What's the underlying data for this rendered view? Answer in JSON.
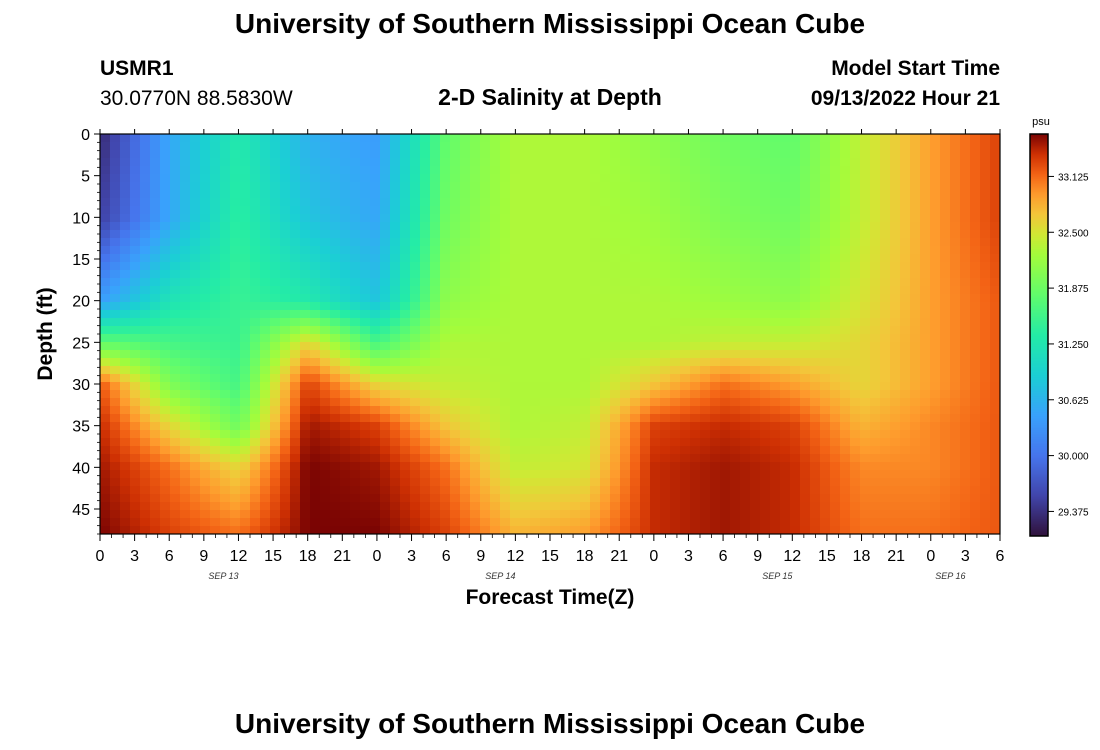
{
  "page": {
    "title": "University of Southern Mississippi Ocean Cube",
    "footer_title": "University of Southern Mississippi Ocean Cube"
  },
  "station": {
    "id": "USMR1",
    "coords": "30.0770N  88.5830W"
  },
  "model": {
    "start_label": "Model Start Time",
    "start_value": "09/13/2022 Hour 21"
  },
  "chart_data": {
    "type": "heatmap",
    "title": "2-D Salinity at Depth",
    "xlabel": "Forecast Time(Z)",
    "ylabel": "Depth (ft)",
    "x_ticks": [
      "0",
      "3",
      "6",
      "9",
      "12",
      "15",
      "18",
      "21",
      "0",
      "3",
      "6",
      "9",
      "12",
      "15",
      "18",
      "21",
      "0",
      "3",
      "6",
      "9",
      "12",
      "15",
      "18",
      "21",
      "0",
      "3",
      "6"
    ],
    "day_labels": [
      {
        "text": "SEP 13",
        "tick_index": 4
      },
      {
        "text": "SEP 14",
        "tick_index": 12
      },
      {
        "text": "SEP 15",
        "tick_index": 20
      },
      {
        "text": "SEP 16",
        "tick_index": 25
      }
    ],
    "y_ticks": [
      0,
      5,
      10,
      15,
      20,
      25,
      30,
      35,
      40,
      45
    ],
    "ylim": [
      0,
      48
    ],
    "xlim_hours": [
      0,
      78
    ],
    "colorbar": {
      "unit": "psu",
      "ticks": [
        "33.125",
        "32.500",
        "31.875",
        "31.250",
        "30.625",
        "30.000",
        "29.375"
      ],
      "range": [
        29.1,
        33.6
      ],
      "colormap": "turbo"
    },
    "salinity_grid": {
      "hours": [
        0,
        6,
        12,
        18,
        24,
        30,
        36,
        42,
        48,
        54,
        60,
        66,
        72,
        78
      ],
      "depths": [
        0,
        10,
        20,
        25,
        30,
        35,
        40,
        48
      ],
      "values": [
        [
          29.3,
          30.5,
          31.3,
          30.6,
          30.4,
          31.8,
          32.3,
          32.3,
          32.1,
          31.9,
          31.8,
          32.4,
          32.9,
          33.3
        ],
        [
          29.5,
          30.5,
          31.4,
          30.8,
          30.5,
          31.9,
          32.3,
          32.3,
          32.2,
          32.0,
          31.9,
          32.4,
          32.9,
          33.3
        ],
        [
          30.4,
          31.2,
          31.5,
          31.3,
          30.8,
          32.1,
          32.3,
          32.3,
          32.3,
          32.2,
          32.1,
          32.5,
          32.9,
          33.2
        ],
        [
          31.8,
          31.6,
          31.5,
          32.6,
          31.6,
          32.3,
          32.3,
          32.3,
          32.3,
          32.4,
          32.4,
          32.6,
          32.9,
          33.2
        ],
        [
          33.2,
          32.0,
          31.6,
          33.3,
          32.6,
          32.4,
          32.3,
          32.3,
          32.7,
          33.1,
          32.9,
          32.6,
          32.9,
          33.2
        ],
        [
          33.4,
          32.6,
          31.9,
          33.5,
          33.3,
          32.7,
          32.3,
          32.4,
          33.3,
          33.4,
          33.3,
          32.8,
          33.0,
          33.2
        ],
        [
          33.5,
          33.1,
          32.6,
          33.6,
          33.5,
          33.1,
          32.4,
          32.5,
          33.4,
          33.5,
          33.4,
          33.0,
          33.0,
          33.2
        ],
        [
          33.6,
          33.3,
          33.1,
          33.6,
          33.6,
          33.3,
          32.8,
          32.9,
          33.4,
          33.5,
          33.4,
          33.1,
          33.1,
          33.2
        ]
      ]
    }
  }
}
